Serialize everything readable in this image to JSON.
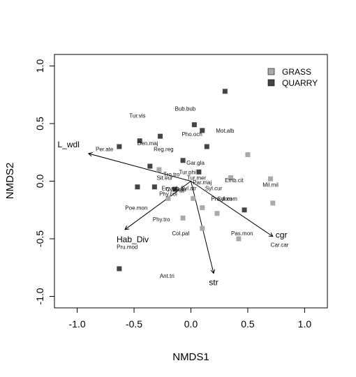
{
  "chart_data": {
    "type": "scatter",
    "xlabel": "NMDS1",
    "ylabel": "NMDS2",
    "xlim": [
      -1.2,
      1.2
    ],
    "ylim": [
      -1.1,
      1.1
    ],
    "xticks": [
      "-1.0",
      "-0.5",
      "0.0",
      "0.5",
      "1.0"
    ],
    "yticks": [
      "-1.0",
      "-0.5",
      "0.0",
      "0.5",
      "1.0"
    ],
    "legend_position": "top-right",
    "series": [
      {
        "name": "GRASS",
        "color": "#aaaaaa",
        "points": [
          {
            "x": 0.5,
            "y": 0.23
          },
          {
            "x": -0.28,
            "y": 0.1
          },
          {
            "x": 0.35,
            "y": 0.03
          },
          {
            "x": 0.7,
            "y": 0.02
          },
          {
            "x": 0.72,
            "y": -0.19
          },
          {
            "x": -0.2,
            "y": -0.15
          },
          {
            "x": -0.08,
            "y": -0.08
          },
          {
            "x": 0.02,
            "y": -0.15
          },
          {
            "x": 0.1,
            "y": -0.23
          },
          {
            "x": 0.23,
            "y": -0.28
          },
          {
            "x": -0.07,
            "y": -0.32
          },
          {
            "x": 0.1,
            "y": -0.41
          },
          {
            "x": 0.42,
            "y": -0.5
          }
        ]
      },
      {
        "name": "QUARRY",
        "color": "#444444",
        "points": [
          {
            "x": 0.3,
            "y": 0.78
          },
          {
            "x": 0.03,
            "y": 0.49
          },
          {
            "x": 0.1,
            "y": 0.44
          },
          {
            "x": -0.45,
            "y": 0.35
          },
          {
            "x": -0.27,
            "y": 0.39
          },
          {
            "x": -0.63,
            "y": 0.3
          },
          {
            "x": 0.14,
            "y": 0.3
          },
          {
            "x": -0.36,
            "y": 0.13
          },
          {
            "x": -0.07,
            "y": 0.18
          },
          {
            "x": 0.07,
            "y": 0.08
          },
          {
            "x": -0.47,
            "y": -0.05
          },
          {
            "x": -0.32,
            "y": -0.05
          },
          {
            "x": -0.14,
            "y": -0.07
          },
          {
            "x": 0.47,
            "y": -0.25
          },
          {
            "x": -0.63,
            "y": -0.76
          }
        ]
      }
    ],
    "species": [
      {
        "label": "Tur.vis",
        "x": -0.47,
        "y": 0.57
      },
      {
        "label": "Bub.bub",
        "x": -0.05,
        "y": 0.63
      },
      {
        "label": "Pho.och",
        "x": 0.01,
        "y": 0.41
      },
      {
        "label": "Mot.alb",
        "x": 0.3,
        "y": 0.44
      },
      {
        "label": "Per.ate",
        "x": -0.76,
        "y": 0.28
      },
      {
        "label": "Den.maj",
        "x": -0.38,
        "y": 0.33
      },
      {
        "label": "Reg.reg",
        "x": -0.24,
        "y": 0.28
      },
      {
        "label": "Gar.gla",
        "x": 0.04,
        "y": 0.16
      },
      {
        "label": "Tur.phi",
        "x": -0.03,
        "y": 0.08
      },
      {
        "label": "Tro.tro",
        "x": -0.17,
        "y": 0.06
      },
      {
        "label": "Tur.mer",
        "x": 0.05,
        "y": 0.03
      },
      {
        "label": "Sit.eur",
        "x": -0.23,
        "y": 0.03
      },
      {
        "label": "Par.maj",
        "x": 0.1,
        "y": -0.01
      },
      {
        "label": "Emb.cit",
        "x": 0.38,
        "y": 0.01
      },
      {
        "label": "Syl.atr",
        "x": -0.02,
        "y": -0.06
      },
      {
        "label": "Syl.cur",
        "x": 0.2,
        "y": -0.06
      },
      {
        "label": "Ery.rub",
        "x": -0.18,
        "y": -0.06
      },
      {
        "label": "Cya.cae",
        "x": -0.13,
        "y": -0.07
      },
      {
        "label": "Mil.mil",
        "x": 0.7,
        "y": -0.03
      },
      {
        "label": "Phy.col",
        "x": -0.2,
        "y": -0.11
      },
      {
        "label": "Pru.dom",
        "x": 0.27,
        "y": -0.15
      },
      {
        "label": "Syl.com",
        "x": 0.32,
        "y": -0.15
      },
      {
        "label": "Poe.mon",
        "x": -0.48,
        "y": -0.23
      },
      {
        "label": "Phy.tro",
        "x": -0.26,
        "y": -0.33
      },
      {
        "label": "Col.pal",
        "x": -0.09,
        "y": -0.45
      },
      {
        "label": "Pas.mon",
        "x": 0.45,
        "y": -0.45
      },
      {
        "label": "Car.car",
        "x": 0.78,
        "y": -0.55
      },
      {
        "label": "Pru.mod",
        "x": -0.56,
        "y": -0.57
      },
      {
        "label": "Ant.tri",
        "x": -0.21,
        "y": -0.82
      }
    ],
    "vectors": [
      {
        "label": "L_wdl",
        "x": -0.9,
        "y": 0.24
      },
      {
        "label": "Hab_Div",
        "x": -0.58,
        "y": -0.42
      },
      {
        "label": "cgr",
        "x": 0.72,
        "y": -0.48
      },
      {
        "label": "str",
        "x": 0.2,
        "y": -0.8
      }
    ]
  }
}
